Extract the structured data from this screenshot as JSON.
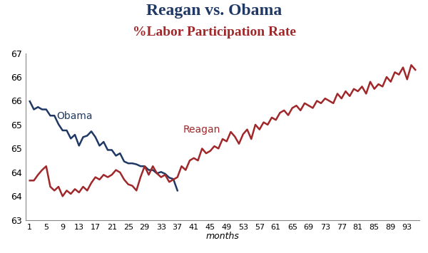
{
  "chart_data": {
    "type": "line",
    "title": "Reagan vs. Obama",
    "subtitle": "%Labor Participation Rate",
    "x_label": "months",
    "xlim": [
      0,
      96
    ],
    "xticks": [
      1,
      5,
      9,
      13,
      17,
      21,
      25,
      29,
      33,
      37,
      41,
      45,
      49,
      53,
      57,
      61,
      65,
      69,
      73,
      77,
      81,
      85,
      89,
      93
    ],
    "ylim": [
      63,
      66.5
    ],
    "yticks": [
      63,
      {
        "value": 63.5,
        "label": "64"
      },
      64,
      {
        "value": 64.5,
        "label": "65"
      },
      65,
      {
        "value": 65.5,
        "label": "66"
      },
      66,
      {
        "value": 66.5,
        "label": "67"
      }
    ],
    "grid": false,
    "series": [
      {
        "name": "Obama",
        "color": "#1f3864",
        "x": [
          1,
          2,
          3,
          4,
          5,
          6,
          7,
          8,
          9,
          10,
          11,
          12,
          13,
          14,
          15,
          16,
          17,
          18,
          19,
          20,
          21,
          22,
          23,
          24,
          25,
          26,
          27,
          28,
          29,
          30,
          31,
          32,
          33,
          34,
          35,
          36,
          37
        ],
        "values": [
          65.49,
          65.32,
          65.37,
          65.32,
          65.32,
          65.19,
          65.19,
          65.01,
          64.88,
          64.88,
          64.71,
          64.79,
          64.56,
          64.74,
          64.77,
          64.86,
          64.74,
          64.56,
          64.64,
          64.47,
          64.47,
          64.35,
          64.4,
          64.23,
          64.19,
          64.19,
          64.17,
          64.13,
          64.13,
          64.05,
          64.05,
          63.98,
          64.01,
          63.97,
          63.89,
          63.86,
          63.62
        ]
      },
      {
        "name": "Reagan",
        "color": "#a0282a",
        "x": [
          1,
          2,
          3,
          4,
          5,
          6,
          7,
          8,
          9,
          10,
          11,
          12,
          13,
          14,
          15,
          16,
          17,
          18,
          19,
          20,
          21,
          22,
          23,
          24,
          25,
          26,
          27,
          28,
          29,
          30,
          31,
          32,
          33,
          34,
          35,
          36,
          37,
          38,
          39,
          40,
          41,
          42,
          43,
          44,
          45,
          46,
          47,
          48,
          49,
          50,
          51,
          52,
          53,
          54,
          55,
          56,
          57,
          58,
          59,
          60,
          61,
          62,
          63,
          64,
          65,
          66,
          67,
          68,
          69,
          70,
          71,
          72,
          73,
          74,
          75,
          76,
          77,
          78,
          79,
          80,
          81,
          82,
          83,
          84,
          85,
          86,
          87,
          88,
          89,
          90,
          91,
          92,
          93,
          94,
          95
        ],
        "values": [
          63.83,
          63.83,
          63.95,
          64.05,
          64.13,
          63.7,
          63.62,
          63.7,
          63.5,
          63.62,
          63.55,
          63.65,
          63.58,
          63.7,
          63.62,
          63.78,
          63.9,
          63.85,
          63.95,
          63.9,
          63.95,
          64.05,
          64.0,
          63.85,
          63.75,
          63.72,
          63.62,
          63.9,
          64.13,
          63.95,
          64.13,
          63.98,
          63.9,
          63.95,
          63.8,
          63.85,
          63.9,
          64.13,
          64.05,
          64.25,
          64.3,
          64.25,
          64.5,
          64.4,
          64.45,
          64.55,
          64.5,
          64.7,
          64.65,
          64.85,
          64.75,
          64.6,
          64.8,
          64.9,
          64.7,
          65.0,
          64.9,
          65.05,
          65.0,
          65.15,
          65.1,
          65.25,
          65.3,
          65.2,
          65.35,
          65.4,
          65.3,
          65.45,
          65.4,
          65.35,
          65.5,
          65.45,
          65.55,
          65.5,
          65.45,
          65.65,
          65.55,
          65.7,
          65.6,
          65.75,
          65.7,
          65.8,
          65.65,
          65.9,
          65.75,
          65.85,
          65.8,
          66.0,
          65.9,
          66.1,
          66.05,
          66.2,
          65.95,
          66.25,
          66.15
        ]
      }
    ]
  }
}
